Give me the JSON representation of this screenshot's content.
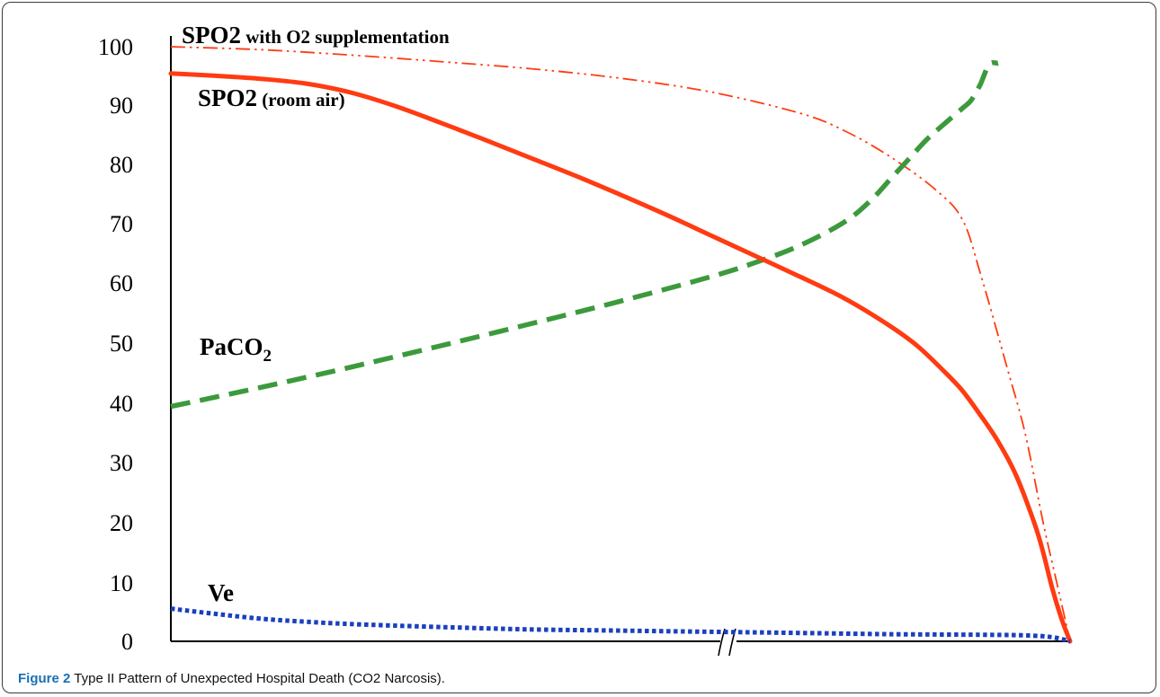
{
  "caption": {
    "figure_label": "Figure 2",
    "text": "Type II Pattern of Unexpected Hospital Death (CO2 Narcosis)."
  },
  "chart_data": {
    "type": "line",
    "title": "",
    "xlabel": "",
    "ylabel": "",
    "ylim": [
      0,
      100
    ],
    "y_ticks": [
      "0",
      "10",
      "20",
      "30",
      "40",
      "50",
      "60",
      "70",
      "80",
      "90",
      "100"
    ],
    "x_axis_break": true,
    "grid": false,
    "legend": "inline labels",
    "series": [
      {
        "name": "SPO2 with O2 supplementation",
        "label_main": "SPO2",
        "label_sub": " with O2 supplementation",
        "style": "dash-dot-dot",
        "color": "#ff3b12",
        "x": [
          0,
          10,
          20,
          30,
          40,
          50,
          60,
          70,
          75,
          80,
          85,
          88,
          90,
          93,
          95,
          97,
          98.5,
          100
        ],
        "y": [
          100,
          99.5,
          98.6,
          97.5,
          96.3,
          94.7,
          92.4,
          88.8,
          85.8,
          81.5,
          76,
          71,
          62,
          46,
          35,
          20,
          10,
          0
        ]
      },
      {
        "name": "SPO2 (room air)",
        "label_main": "SPO2",
        "label_sub": " (room air)",
        "style": "solid",
        "color": "#ff3b12",
        "x": [
          0,
          5,
          10,
          15,
          20,
          25,
          30,
          35,
          40,
          45,
          50,
          55,
          60,
          65,
          70,
          75,
          80,
          83,
          86,
          88,
          90,
          92,
          94,
          96,
          97,
          98,
          99,
          100
        ],
        "y": [
          95.5,
          95.1,
          94.6,
          93.8,
          92.3,
          90,
          87.2,
          84.3,
          81.3,
          78.3,
          75.1,
          71.8,
          68.3,
          64.8,
          61.3,
          57.6,
          53,
          49.7,
          45.4,
          42.2,
          38.1,
          33.6,
          27.9,
          20,
          15,
          9,
          4,
          0
        ]
      },
      {
        "name": "PaCO2",
        "label_main": "PaCO",
        "label_sub": "2",
        "style": "dashed",
        "color": "#3c9a3c",
        "x": [
          0,
          10,
          20,
          30,
          40,
          50,
          60,
          65,
          70,
          75,
          78,
          80,
          82,
          84,
          86,
          88,
          89,
          90,
          91,
          92
        ],
        "y": [
          39.5,
          42.7,
          46.1,
          49.7,
          53.4,
          57.2,
          61.3,
          63.7,
          66.6,
          70.6,
          74.4,
          77.7,
          81,
          84.3,
          87,
          89.6,
          91,
          93.6,
          97,
          97.2
        ]
      },
      {
        "name": "Ve",
        "label_main": "Ve",
        "label_sub": "",
        "style": "dotted",
        "color": "#1a3fbf",
        "x": [
          0,
          5,
          10,
          15,
          20,
          30,
          40,
          50,
          60,
          70,
          80,
          90,
          95,
          98,
          100
        ],
        "y": [
          5.5,
          4.6,
          3.8,
          3.3,
          2.9,
          2.4,
          2.0,
          1.8,
          1.6,
          1.4,
          1.2,
          1.1,
          1.0,
          0.7,
          0
        ]
      }
    ]
  }
}
